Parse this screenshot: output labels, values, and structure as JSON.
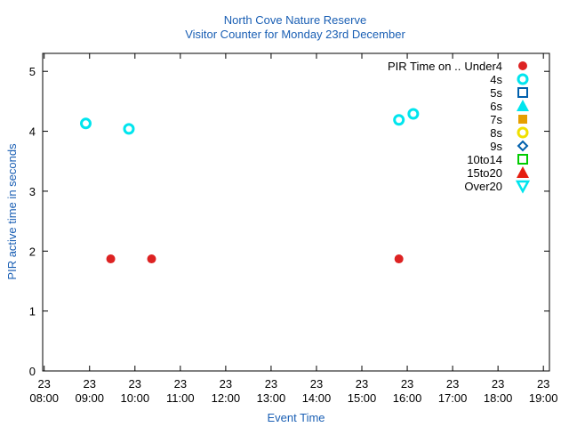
{
  "chart_data": {
    "type": "scatter",
    "title": "North Cove Nature Reserve",
    "subtitle": "Visitor Counter for Monday 23rd December",
    "xlabel": "Event Time",
    "ylabel": "PIR active time in seconds",
    "legend_title": "PIR Time on ..",
    "legend": "top-right",
    "xlim": [
      "23 07:58",
      "23 19:08"
    ],
    "xticks": [
      "23 08:00",
      "23 09:00",
      "23 10:00",
      "23 11:00",
      "23 12:00",
      "23 13:00",
      "23 14:00",
      "23 15:00",
      "23 16:00",
      "23 17:00",
      "23 18:00",
      "23 19:00"
    ],
    "ylim": [
      0,
      5.3
    ],
    "yticks": [
      0,
      1,
      2,
      3,
      4,
      5
    ],
    "series": [
      {
        "name": "Under4",
        "color": "#dd2222",
        "marker": "circle-filled",
        "x": [
          "23 09:28",
          "23 10:22",
          "23 15:49"
        ],
        "values": [
          1.87,
          1.87,
          1.87
        ]
      },
      {
        "name": "4s",
        "color": "#00e5ee",
        "marker": "circle-open",
        "x": [
          "23 08:55",
          "23 09:52",
          "23 15:49",
          "23 16:08"
        ],
        "values": [
          4.13,
          4.04,
          4.19,
          4.29
        ]
      },
      {
        "name": "5s",
        "color": "#0060ad",
        "marker": "square-open",
        "x": [],
        "values": []
      },
      {
        "name": "6s",
        "color": "#00e5ee",
        "marker": "triangle-filled",
        "x": [],
        "values": []
      },
      {
        "name": "7s",
        "color": "#e69f00",
        "marker": "square-filled",
        "x": [],
        "values": []
      },
      {
        "name": "8s",
        "color": "#f0e000",
        "marker": "circle-open",
        "x": [],
        "values": []
      },
      {
        "name": "9s",
        "color": "#0060ad",
        "marker": "diamond-open",
        "x": [],
        "values": []
      },
      {
        "name": "10to14",
        "color": "#00cc00",
        "marker": "square-open",
        "x": [],
        "values": []
      },
      {
        "name": "15to20",
        "color": "#e51e10",
        "marker": "triangle-filled",
        "x": [],
        "values": []
      },
      {
        "name": "Over20",
        "color": "#00e5ee",
        "marker": "triangle-down-open",
        "x": [],
        "values": []
      }
    ]
  }
}
